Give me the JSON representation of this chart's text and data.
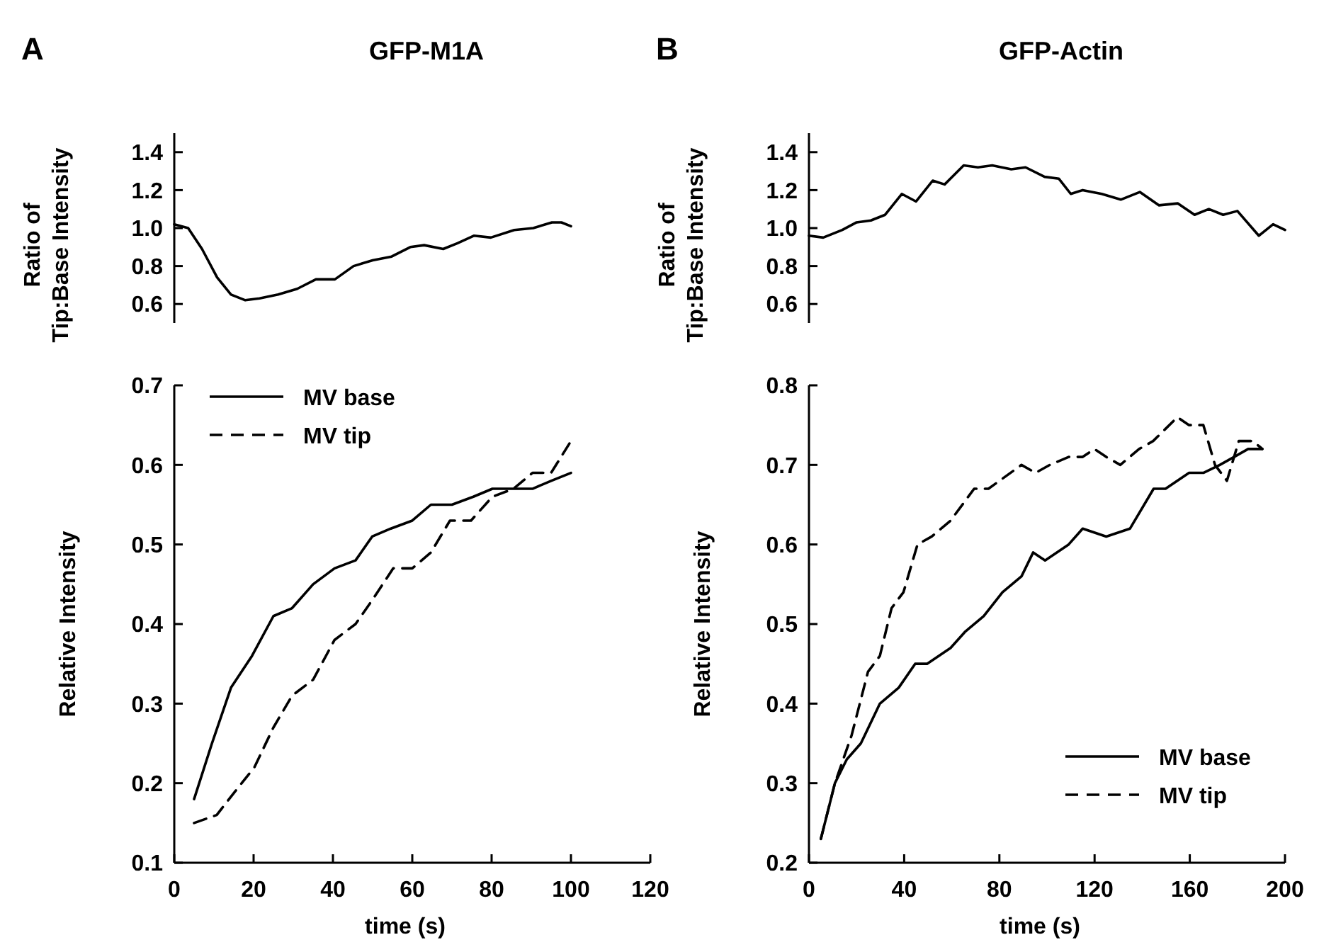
{
  "chart_data": [
    {
      "type": "line",
      "title": "GFP-M1A",
      "ylabel": "Ratio of\nTip:Base Intensity",
      "annotations": [
        "A"
      ],
      "xlim": [
        0,
        120
      ],
      "ylim": [
        0.5,
        1.5
      ],
      "yticks": [
        0.6,
        0.8,
        {
          "value": 1,
          "label": "1.0"
        },
        1.2,
        1.4
      ],
      "tick_labels": "y",
      "legend": false,
      "series": [
        {
          "color": "#000000",
          "x": [
            0,
            3.5,
            7,
            10.8,
            14.3,
            17.9,
            21.5,
            26.2,
            31,
            35.7,
            40.5,
            45.2,
            50,
            54.8,
            59.5,
            63,
            67.8,
            71.4,
            75.6,
            79.8,
            85.7,
            90.5,
            95.2,
            97.6,
            100
          ],
          "values": [
            1.02,
            1.0,
            0.89,
            0.74,
            0.65,
            0.62,
            0.63,
            0.65,
            0.68,
            0.73,
            0.73,
            0.8,
            0.83,
            0.85,
            0.9,
            0.91,
            0.89,
            0.92,
            0.96,
            0.95,
            0.99,
            1.0,
            1.03,
            1.03,
            1.01
          ]
        }
      ]
    },
    {
      "type": "line",
      "title": "GFP-Actin",
      "ylabel": "Ratio of\nTip:Base Intensity",
      "annotations": [
        "B"
      ],
      "xlim": [
        0,
        200
      ],
      "ylim": [
        0.5,
        1.5
      ],
      "yticks": [
        0.6,
        0.8,
        {
          "value": 1,
          "label": "1.0"
        },
        1.2,
        1.4
      ],
      "tick_labels": "y",
      "legend": false,
      "series": [
        {
          "color": "#000000",
          "x": [
            0,
            6,
            14,
            20,
            26,
            32,
            39,
            45,
            52,
            57,
            65,
            71,
            77,
            85,
            91,
            99,
            105,
            110,
            115,
            123,
            131,
            139,
            147,
            155,
            162,
            168,
            174,
            180,
            189,
            195,
            200
          ],
          "values": [
            0.96,
            0.95,
            0.99,
            1.03,
            1.04,
            1.07,
            1.18,
            1.14,
            1.25,
            1.23,
            1.33,
            1.32,
            1.33,
            1.31,
            1.32,
            1.27,
            1.26,
            1.18,
            1.2,
            1.18,
            1.15,
            1.19,
            1.12,
            1.13,
            1.07,
            1.1,
            1.07,
            1.09,
            0.96,
            1.02,
            0.99
          ]
        }
      ]
    },
    {
      "type": "line",
      "xlabel": "time (s)",
      "ylabel": "Relative Intensity",
      "xlim": [
        0,
        120
      ],
      "xticks": [
        0,
        20,
        40,
        60,
        80,
        100,
        120
      ],
      "ylim": [
        0.1,
        0.7
      ],
      "yticks": [
        0.1,
        0.2,
        0.3,
        0.4,
        0.5,
        0.6,
        0.7
      ],
      "legend": "top left",
      "series": [
        {
          "name": "MV base",
          "color": "#000000",
          "line_style": "solid",
          "x": [
            5,
            9.5,
            14.3,
            19.6,
            25,
            29.7,
            35,
            40.4,
            45.7,
            49.9,
            54.6,
            60,
            64.7,
            70,
            75.4,
            80.2,
            85.5,
            90.3,
            95,
            100
          ],
          "values": [
            0.18,
            0.25,
            0.32,
            0.36,
            0.41,
            0.42,
            0.45,
            0.47,
            0.48,
            0.51,
            0.52,
            0.53,
            0.55,
            0.55,
            0.56,
            0.57,
            0.57,
            0.57,
            0.58,
            0.59
          ]
        },
        {
          "name": "MV tip",
          "color": "#000000",
          "line_style": "dashed",
          "x": [
            5,
            10.7,
            15.4,
            20.2,
            25,
            29.7,
            35,
            40.4,
            45.7,
            49.9,
            55.2,
            60,
            64.7,
            69.5,
            74.8,
            80.2,
            85.5,
            90.3,
            95,
            100
          ],
          "values": [
            0.15,
            0.16,
            0.19,
            0.22,
            0.27,
            0.31,
            0.33,
            0.38,
            0.4,
            0.43,
            0.47,
            0.47,
            0.49,
            0.53,
            0.53,
            0.56,
            0.57,
            0.59,
            0.59,
            0.63
          ]
        }
      ]
    },
    {
      "type": "line",
      "xlabel": "time (s)",
      "ylabel": "Relative Intensity",
      "xlim": [
        0,
        200
      ],
      "xticks": [
        0,
        40,
        80,
        120,
        160,
        200
      ],
      "ylim": [
        0.2,
        0.8
      ],
      "yticks": [
        0.2,
        0.3,
        0.4,
        0.5,
        0.6,
        0.7,
        0.8
      ],
      "legend": "bottom right",
      "series": [
        {
          "name": "MV base",
          "color": "#000000",
          "line_style": "solid",
          "x": [
            5,
            10.9,
            15.9,
            21.8,
            29.8,
            37.7,
            44.6,
            49.6,
            59.5,
            65.5,
            73.4,
            81.3,
            89.3,
            94.2,
            99.2,
            109.1,
            115,
            124.9,
            134.9,
            144.8,
            149.8,
            159.7,
            165.7,
            172.6,
            178.6,
            184.5,
            190.5
          ],
          "values": [
            0.23,
            0.3,
            0.33,
            0.35,
            0.4,
            0.42,
            0.45,
            0.45,
            0.47,
            0.49,
            0.51,
            0.54,
            0.56,
            0.59,
            0.58,
            0.6,
            0.62,
            0.61,
            0.62,
            0.67,
            0.67,
            0.69,
            0.69,
            0.7,
            0.71,
            0.72,
            0.72
          ]
        },
        {
          "name": "MV tip",
          "color": "#000000",
          "line_style": "dashed",
          "x": [
            5,
            10.9,
            17.9,
            24.8,
            29.8,
            34.7,
            39.7,
            45.6,
            51.6,
            59.5,
            69.4,
            75.4,
            89.3,
            95.2,
            101.2,
            109.1,
            115,
            119.9,
            124.9,
            130.8,
            138.7,
            144.6,
            154.8,
            159.7,
            165.7,
            170.6,
            175.6,
            180.6,
            186.5,
            190.5
          ],
          "values": [
            0.23,
            0.3,
            0.36,
            0.44,
            0.46,
            0.52,
            0.54,
            0.6,
            0.61,
            0.63,
            0.67,
            0.67,
            0.7,
            0.69,
            0.7,
            0.71,
            0.71,
            0.72,
            0.71,
            0.7,
            0.72,
            0.73,
            0.76,
            0.75,
            0.75,
            0.7,
            0.68,
            0.73,
            0.73,
            0.72
          ]
        }
      ]
    }
  ]
}
